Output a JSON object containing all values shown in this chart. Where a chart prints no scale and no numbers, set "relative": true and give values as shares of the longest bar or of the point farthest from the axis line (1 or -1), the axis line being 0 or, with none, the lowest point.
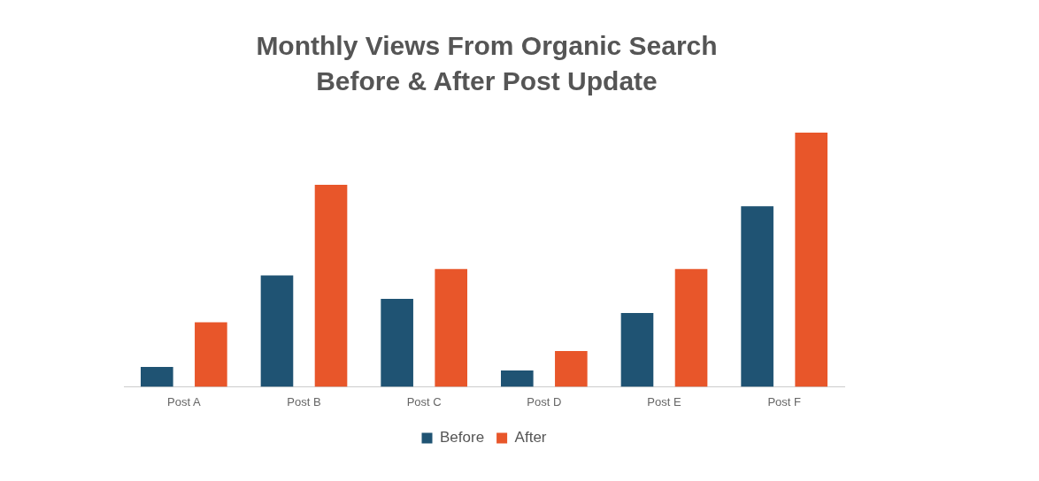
{
  "chart_data": {
    "type": "bar",
    "title": "Monthly Views From Organic Search\nBefore & After Post Update",
    "categories": [
      "Post A",
      "Post B",
      "Post C",
      "Post D",
      "Post E",
      "Post F"
    ],
    "relative": true,
    "legend": "bottom",
    "grid": false,
    "series": [
      {
        "name": "Before",
        "color": "#1f5373",
        "values": [
          0.078,
          0.438,
          0.346,
          0.064,
          0.29,
          0.71
        ]
      },
      {
        "name": "After",
        "color": "#e8562a",
        "values": [
          0.254,
          0.795,
          0.463,
          0.141,
          0.463,
          1
        ]
      }
    ]
  }
}
